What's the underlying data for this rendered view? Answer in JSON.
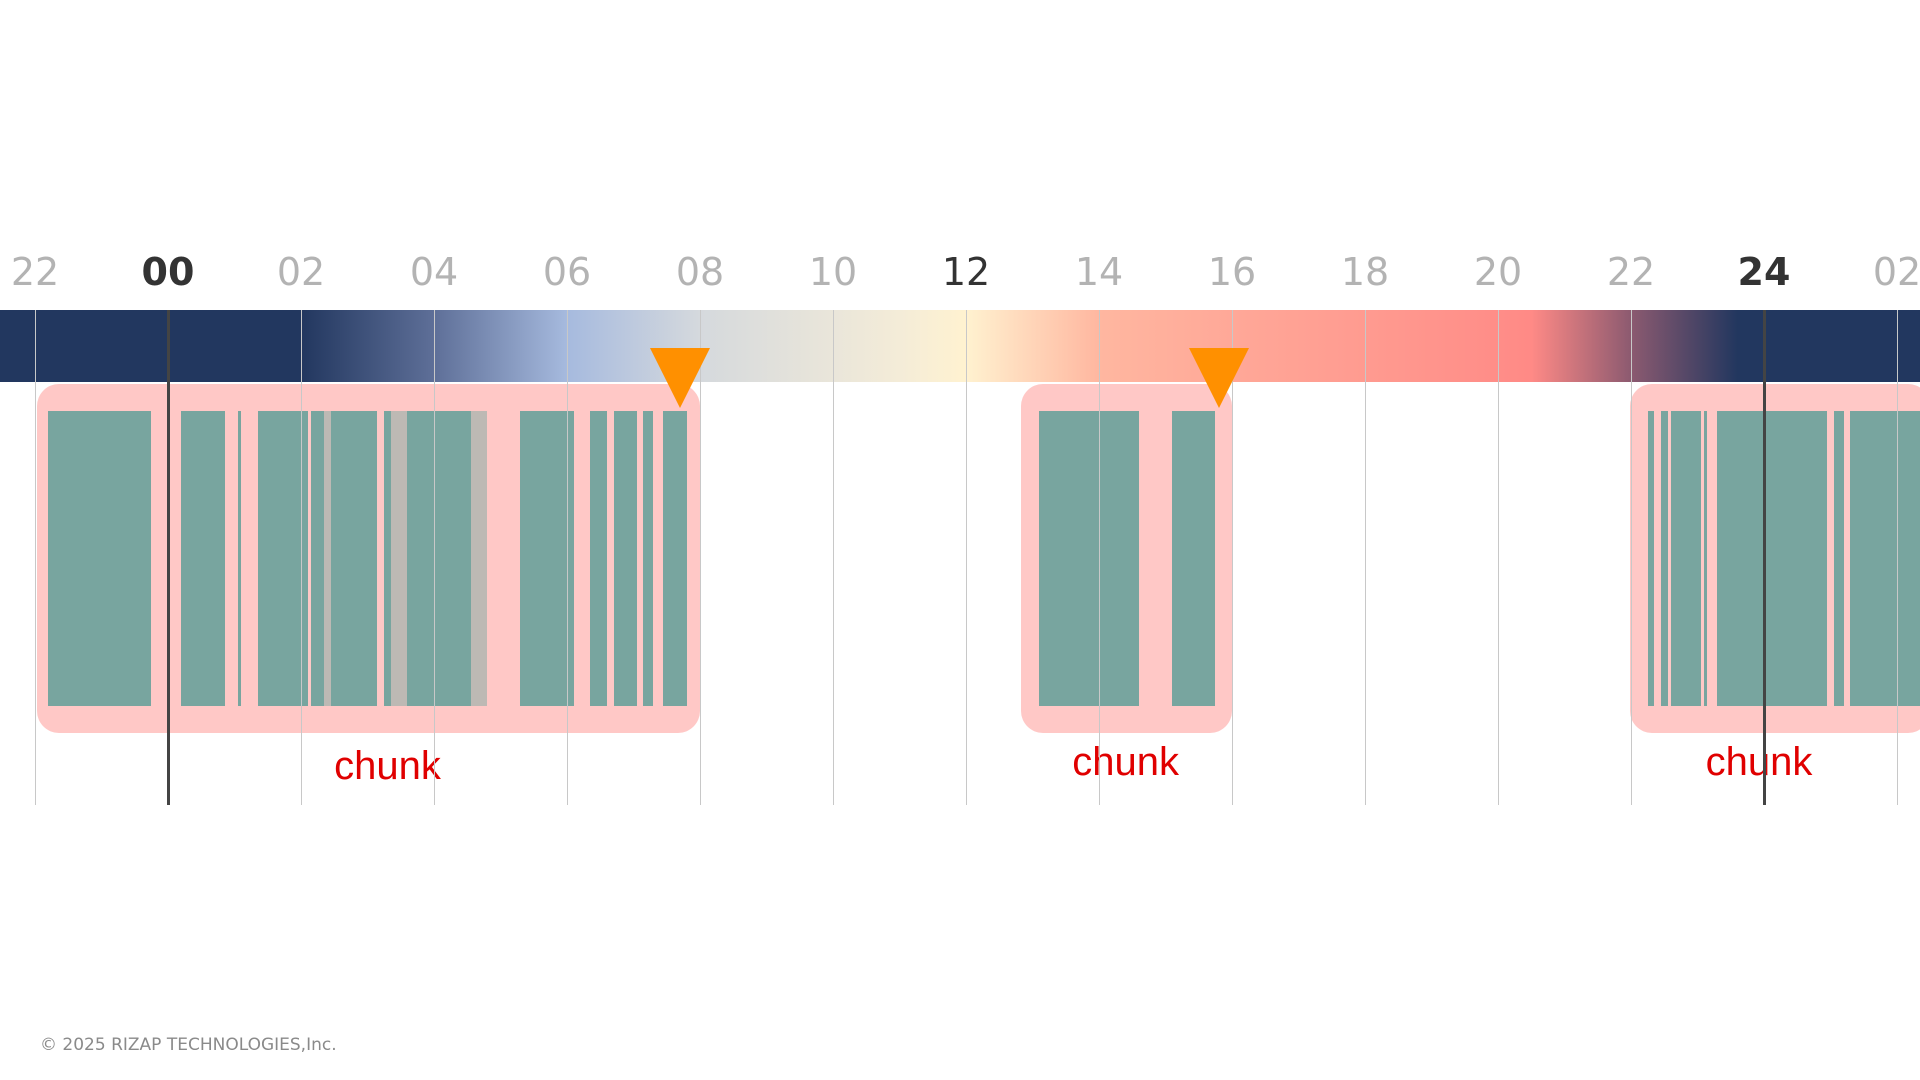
{
  "timeline": {
    "hours": [
      {
        "label": "22",
        "hour": -2,
        "style": "minor"
      },
      {
        "label": "00",
        "hour": 0,
        "style": "major"
      },
      {
        "label": "02",
        "hour": 2,
        "style": "minor"
      },
      {
        "label": "04",
        "hour": 4,
        "style": "minor"
      },
      {
        "label": "06",
        "hour": 6,
        "style": "minor"
      },
      {
        "label": "08",
        "hour": 8,
        "style": "minor"
      },
      {
        "label": "10",
        "hour": 10,
        "style": "minor"
      },
      {
        "label": "12",
        "hour": 12,
        "style": "noon"
      },
      {
        "label": "14",
        "hour": 14,
        "style": "minor"
      },
      {
        "label": "16",
        "hour": 16,
        "style": "minor"
      },
      {
        "label": "18",
        "hour": 18,
        "style": "minor"
      },
      {
        "label": "20",
        "hour": 20,
        "style": "minor"
      },
      {
        "label": "22",
        "hour": 22,
        "style": "minor"
      },
      {
        "label": "24",
        "hour": 24,
        "style": "major"
      },
      {
        "label": "02",
        "hour": 26,
        "style": "minor"
      }
    ],
    "daylight_colors": {
      "night": "#22375f",
      "dawn": "#a6bade",
      "morning": "#d5d9dd",
      "noon": "#fff2d0",
      "afternoon": "#ffb7a0",
      "dusk": "#ff8a86",
      "twilight": "#8c5a70"
    }
  },
  "chunks": [
    {
      "label": "chunk",
      "start_hour": -2.0,
      "end_hour": 8.0,
      "marker_hour": 7.7,
      "sleep_segments": [
        [
          -1.8,
          -0.25
        ],
        [
          0.2,
          0.85
        ],
        [
          1.05,
          1.1
        ],
        [
          1.35,
          2.1
        ],
        [
          2.15,
          2.35
        ],
        [
          2.45,
          3.15
        ],
        [
          3.25,
          3.35
        ],
        [
          3.6,
          4.55
        ],
        [
          5.3,
          6.1
        ],
        [
          6.35,
          6.6
        ],
        [
          6.7,
          7.05
        ],
        [
          7.15,
          7.3
        ],
        [
          7.45,
          7.8
        ]
      ],
      "awake_segments": [
        [
          2.35,
          2.45
        ],
        [
          3.35,
          3.6
        ],
        [
          4.55,
          4.8
        ]
      ]
    },
    {
      "label": "chunk",
      "start_hour": 12.8,
      "end_hour": 16.0,
      "marker_hour": 15.8,
      "sleep_segments": [
        [
          13.1,
          14.6
        ],
        [
          15.1,
          15.75
        ]
      ],
      "awake_segments": []
    },
    {
      "label": "chunk",
      "start_hour": 21.95,
      "end_hour": 26.5,
      "marker_hour": null,
      "sleep_segments": [
        [
          22.25,
          22.35
        ],
        [
          22.45,
          22.55
        ],
        [
          22.6,
          23.05
        ],
        [
          23.1,
          23.15
        ],
        [
          23.3,
          24.95
        ],
        [
          25.05,
          25.2
        ],
        [
          25.3,
          26.5
        ]
      ],
      "awake_segments": []
    }
  ],
  "colors": {
    "chunk_fill": "#ffc8c6",
    "chunk_label": "#e00000",
    "sleep": "#78a59f",
    "awake": "#bdb9b4",
    "marker": "#ff9000"
  },
  "footer": {
    "copyright": "© 2025 RIZAP TECHNOLOGIES,Inc."
  }
}
